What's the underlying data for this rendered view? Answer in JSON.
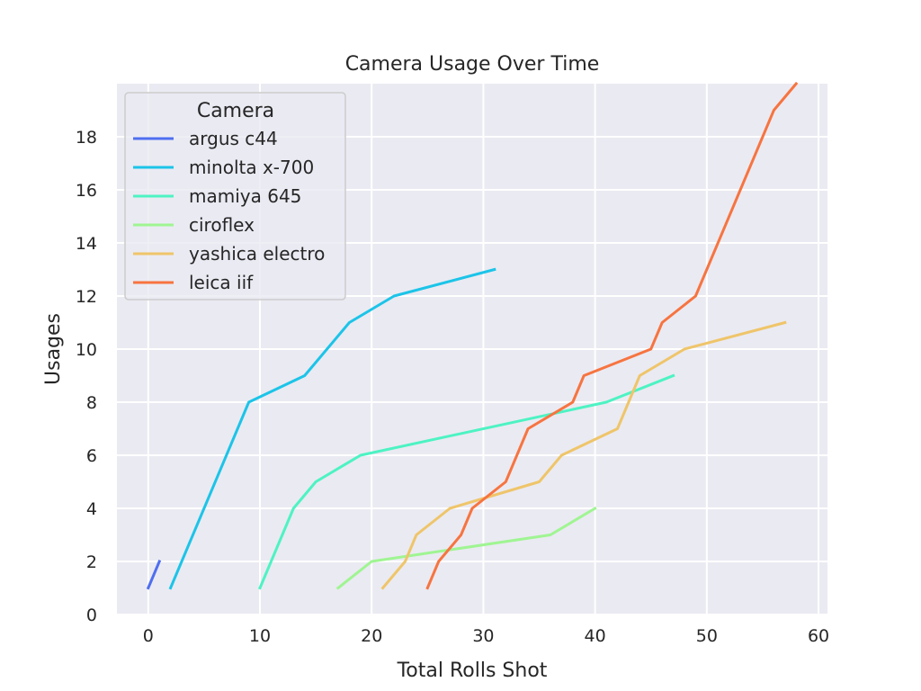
{
  "chart_data": {
    "type": "line",
    "title": "Camera Usage Over Time",
    "xlabel": "Total Rolls Shot",
    "ylabel": "Usages",
    "xlim": [
      -2.8,
      60.8
    ],
    "ylim": [
      0,
      20.0
    ],
    "xticks": [
      0,
      10,
      20,
      30,
      40,
      50,
      60
    ],
    "yticks": [
      0,
      2,
      4,
      6,
      8,
      10,
      12,
      14,
      16,
      18
    ],
    "grid": true,
    "legend": {
      "title": "Camera",
      "placement": "top-left"
    },
    "series": [
      {
        "name": "argus c44",
        "color": "#4f6ff0",
        "x": [
          0,
          1
        ],
        "y": [
          1,
          2
        ]
      },
      {
        "name": "minolta x-700",
        "color": "#1cc4e8",
        "x": [
          2,
          9,
          14,
          18,
          22,
          31
        ],
        "y": [
          1,
          8,
          9,
          11,
          12,
          13
        ]
      },
      {
        "name": "mamiya 645",
        "color": "#4df3c3",
        "x": [
          10,
          13,
          15,
          19,
          41,
          47
        ],
        "y": [
          1,
          4,
          5,
          6,
          8,
          9
        ]
      },
      {
        "name": "ciroflex",
        "color": "#9ff592",
        "x": [
          17,
          20,
          36,
          40
        ],
        "y": [
          1,
          2,
          3,
          4
        ]
      },
      {
        "name": "yashica electro",
        "color": "#efc56a",
        "x": [
          21,
          23,
          24,
          27,
          35,
          37,
          42,
          44,
          48,
          57
        ],
        "y": [
          1,
          2,
          3,
          4,
          5,
          6,
          7,
          9,
          10,
          11
        ]
      },
      {
        "name": "leica iif",
        "color": "#f77440",
        "x": [
          25,
          26,
          28,
          29,
          32,
          34,
          38,
          39,
          45,
          46,
          49,
          56,
          58
        ],
        "y": [
          1,
          2,
          3,
          4,
          5,
          7,
          8,
          9,
          10,
          11,
          12,
          19,
          20
        ]
      }
    ]
  }
}
